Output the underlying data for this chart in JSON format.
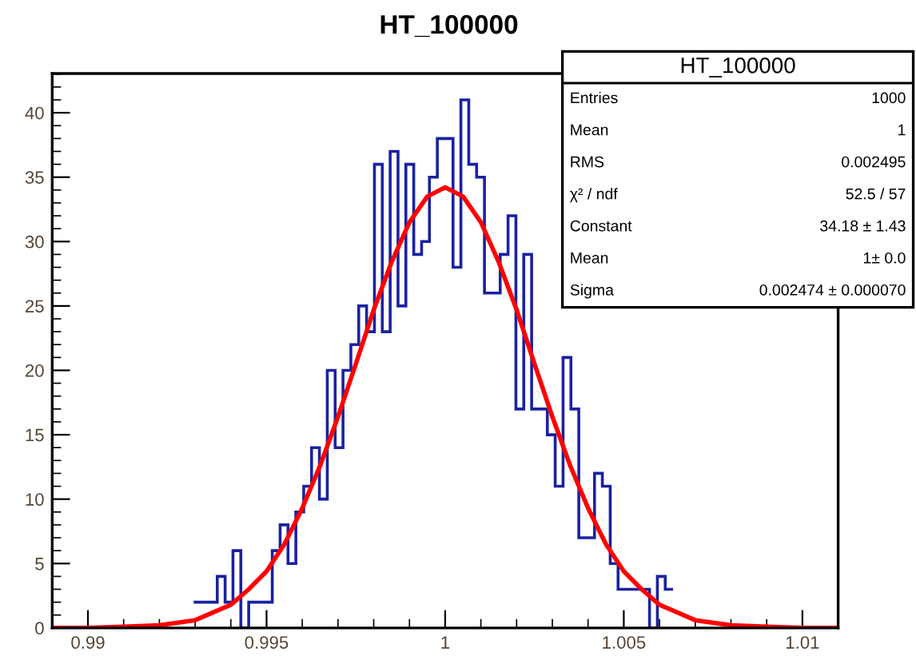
{
  "chart_data": {
    "type": "histogram",
    "title": "HT_100000",
    "series": [
      {
        "type": "histogram",
        "color": "#1a22a0",
        "bins": [
          0.99296,
          0.99318,
          0.9934,
          0.99362,
          0.99384,
          0.99406,
          0.99428,
          0.9945,
          0.99472,
          0.99494,
          0.99516,
          0.99538,
          0.9956,
          0.99582,
          0.99604,
          0.99626,
          0.99648,
          0.9967,
          0.99692,
          0.99714,
          0.99736,
          0.99758,
          0.9978,
          0.99802,
          0.99824,
          0.99846,
          0.99868,
          0.9989,
          0.99912,
          0.99934,
          0.99956,
          0.99978,
          1.0,
          1.00022,
          1.00044,
          1.00066,
          1.00088,
          1.0011,
          1.00132,
          1.00154,
          1.00176,
          1.00198,
          1.0022,
          1.00242,
          1.00264,
          1.00286,
          1.00308,
          1.0033,
          1.00352,
          1.00374,
          1.00396,
          1.00418,
          1.0044,
          1.00462,
          1.00484,
          1.00506,
          1.00528,
          1.0055,
          1.00572,
          1.00594,
          1.00616,
          1.00638
        ],
        "values": [
          2,
          2,
          2,
          4,
          2,
          6,
          0,
          2,
          2,
          2,
          6,
          8,
          5,
          9,
          11,
          14,
          10,
          20,
          14,
          20,
          22,
          25,
          23,
          36,
          23,
          37,
          25,
          36,
          29,
          30,
          35,
          38,
          38,
          28,
          41,
          36,
          35,
          26,
          26,
          29,
          32,
          17,
          29,
          17,
          17,
          15,
          11,
          21,
          17,
          7,
          7,
          12,
          11,
          5,
          3,
          3,
          3,
          3,
          0,
          4,
          3
        ]
      },
      {
        "type": "line",
        "color": "#ff0000",
        "x": [
          0.989,
          0.99,
          0.991,
          0.992,
          0.993,
          0.994,
          0.9945,
          0.995,
          0.9955,
          0.996,
          0.9965,
          0.997,
          0.9975,
          0.998,
          0.9985,
          0.999,
          0.9995,
          1,
          1.0005,
          1.001,
          1.0015,
          1.002,
          1.0025,
          1.003,
          1.0035,
          1.004,
          1.0045,
          1.005,
          1.0055,
          1.006,
          1.007,
          1.008,
          1.009,
          1.01,
          1.011
        ],
        "values": [
          0.0,
          0.0,
          0.1,
          0.2,
          0.6,
          1.8,
          3.0,
          4.4,
          6.5,
          9.3,
          12.6,
          16.4,
          20.5,
          24.7,
          28.4,
          31.5,
          33.5,
          34.2,
          33.5,
          31.5,
          28.4,
          24.7,
          20.5,
          16.4,
          12.6,
          9.3,
          6.5,
          4.4,
          3.0,
          1.8,
          0.6,
          0.2,
          0.1,
          0.0,
          0.0
        ]
      }
    ],
    "xlim": [
      0.989,
      1.011
    ],
    "xticks": [
      0.99,
      0.995,
      1,
      1.005,
      1.01
    ],
    "ylim": [
      0,
      43.05
    ],
    "yticks": [
      0,
      5,
      10,
      15,
      20,
      25,
      30,
      35,
      40
    ],
    "grid": false,
    "legend": false,
    "annotations": [
      "HT_100000",
      "Entries",
      "1000",
      "Mean",
      "1",
      "RMS",
      "0.002495",
      "χ² / ndf",
      "52.5 / 57",
      "Constant",
      "34.18 ± 1.43",
      "Mean",
      "1± 0.0",
      "Sigma",
      "0.002474 ± 0.000070"
    ]
  }
}
